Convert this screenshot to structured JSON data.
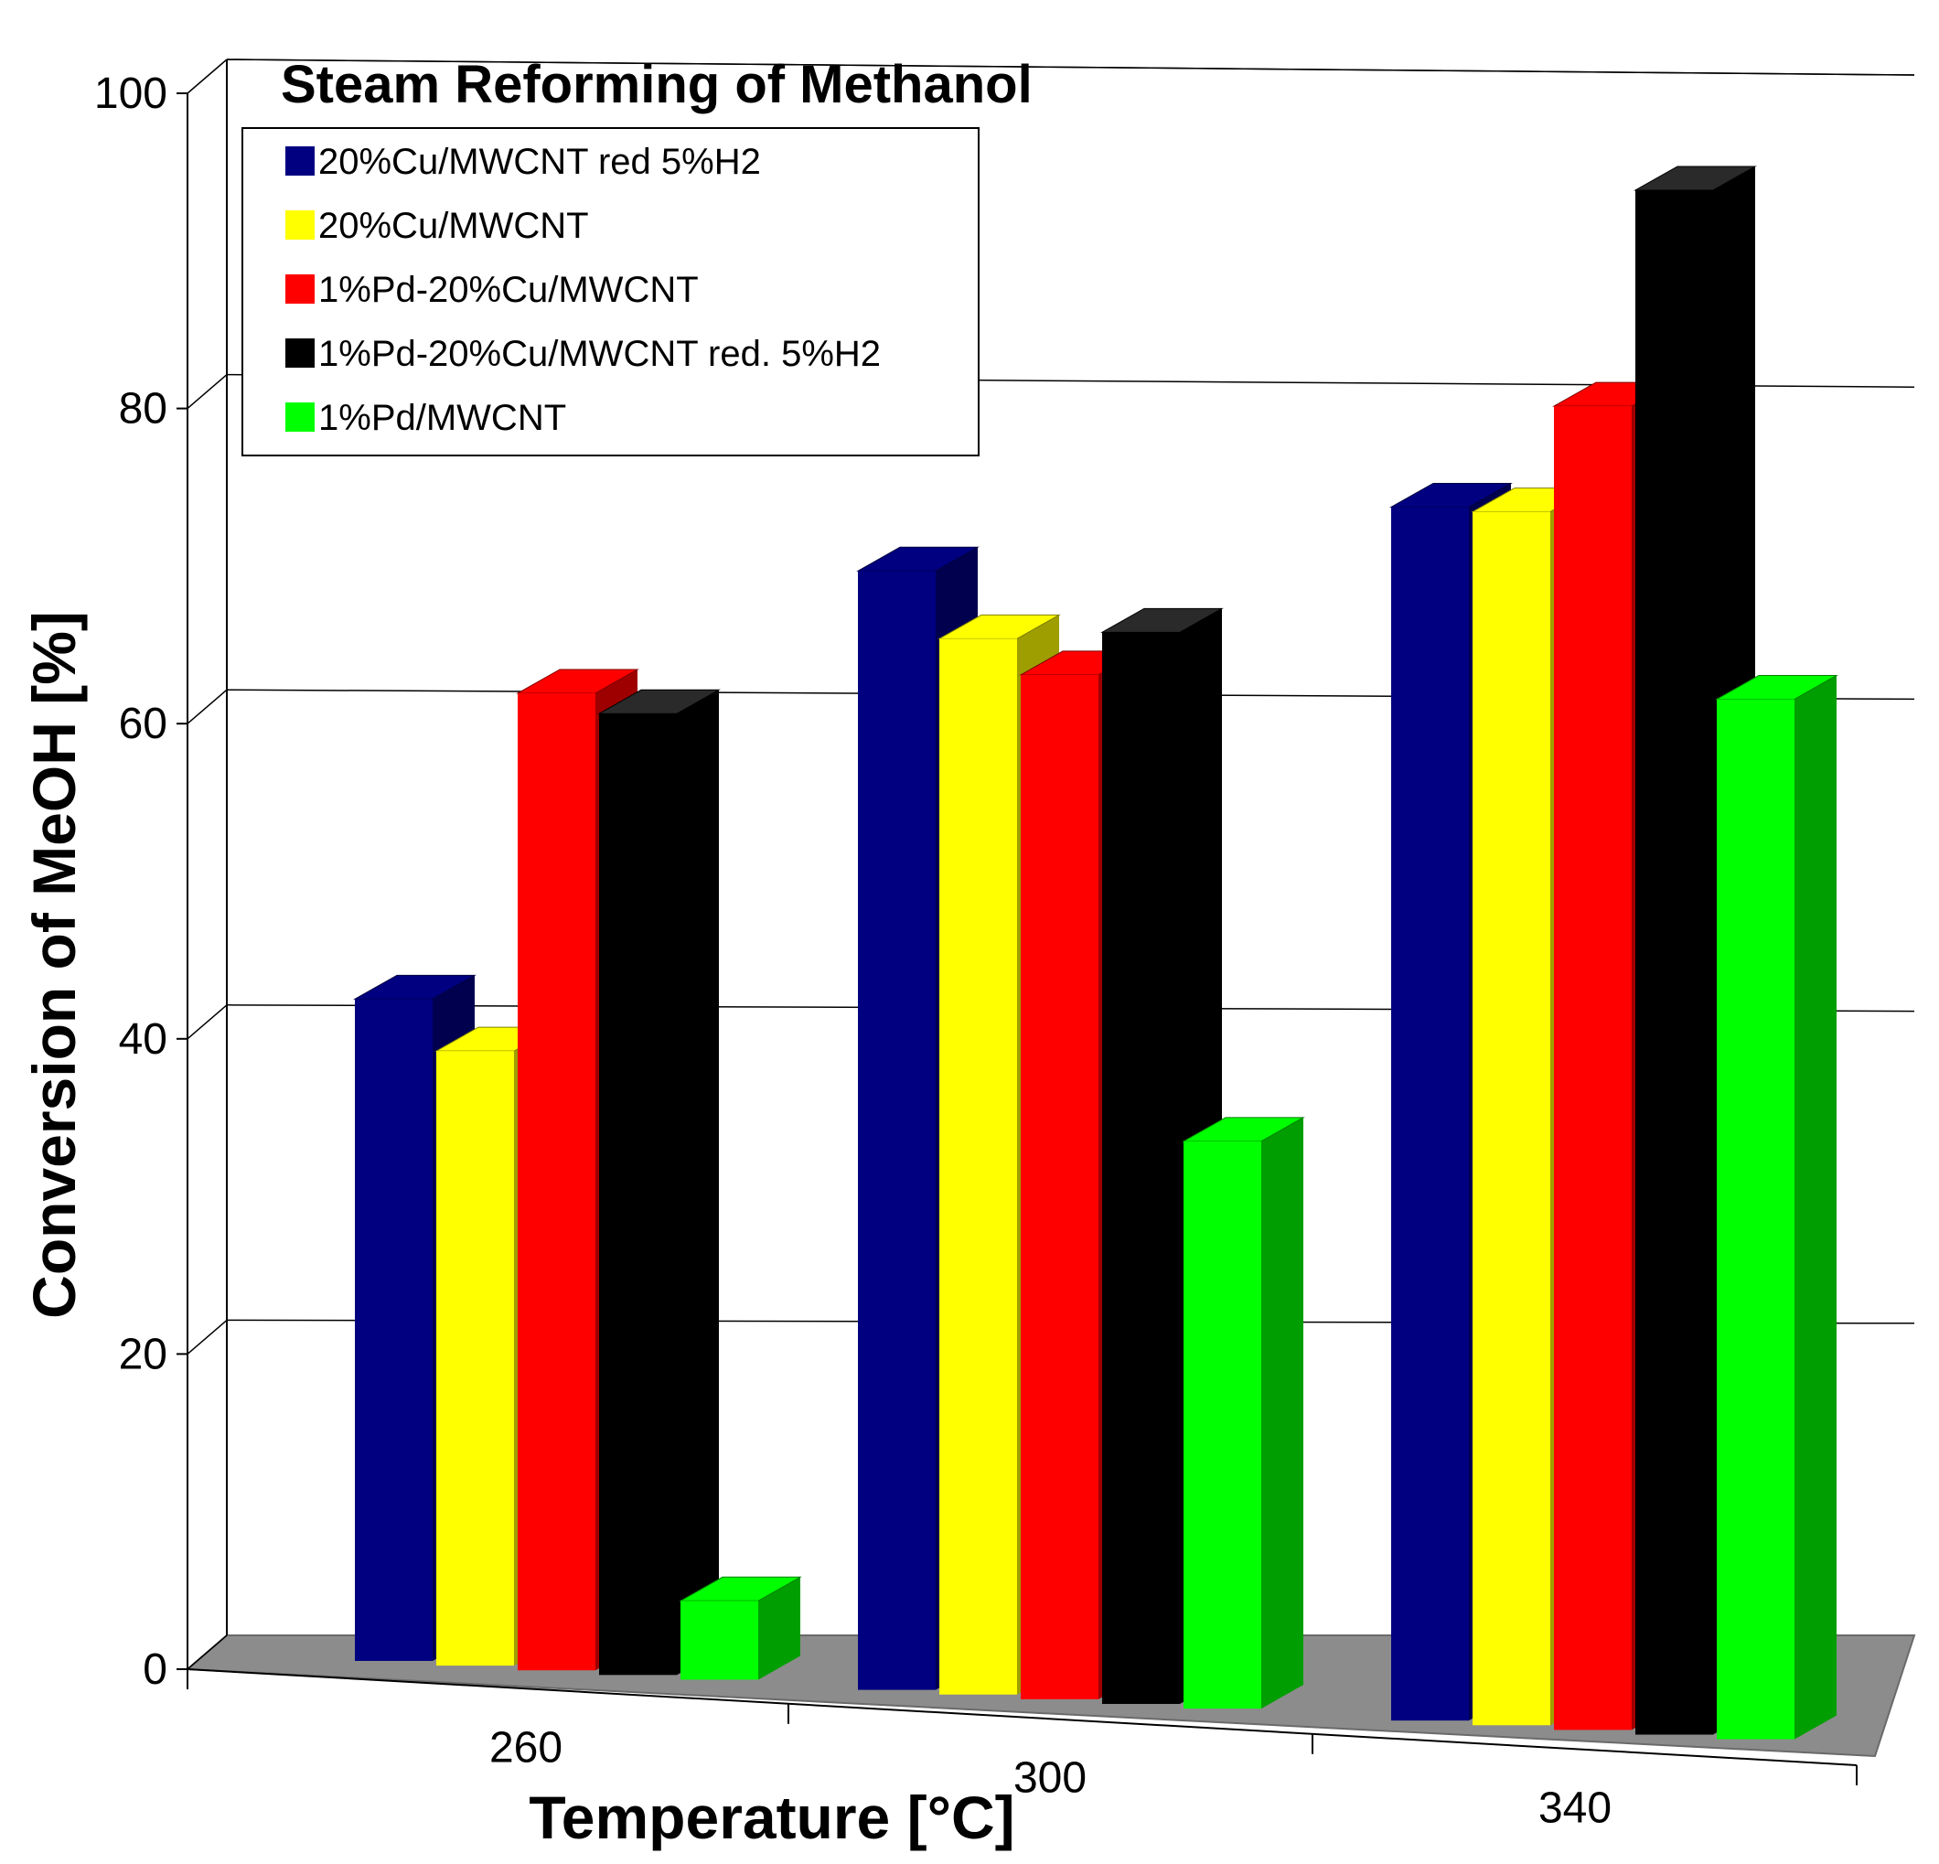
{
  "chart_data": {
    "type": "bar",
    "title": "Steam Reforming of Methanol",
    "xlabel": "Temperature [°C]",
    "ylabel": "Conversion of MeOH [%]",
    "ylim": [
      0,
      100
    ],
    "yticks": [
      0,
      20,
      40,
      60,
      80,
      100
    ],
    "ytick_labels": [
      "0",
      "20",
      "40",
      "60",
      "80",
      "100"
    ],
    "categories": [
      "260",
      "300",
      "340"
    ],
    "legend_position": "top-left",
    "series": [
      {
        "name": "20%Cu/MWCNT red 5%H2",
        "color": "#000080",
        "values": [
          42,
          71,
          77
        ]
      },
      {
        "name": "20%Cu/MWCNT",
        "color": "#ffff00",
        "values": [
          39,
          67,
          77
        ]
      },
      {
        "name": "1%Pd-20%Cu/MWCNT",
        "color": "#ff0000",
        "values": [
          62,
          65,
          84
        ]
      },
      {
        "name": "1%Pd-20%Cu/MWCNT red. 5%H2",
        "color": "#000000",
        "values": [
          61,
          68,
          98
        ]
      },
      {
        "name": "1%Pd/MWCNT",
        "color": "#00ff00",
        "values": [
          5,
          36,
          66
        ]
      }
    ]
  }
}
